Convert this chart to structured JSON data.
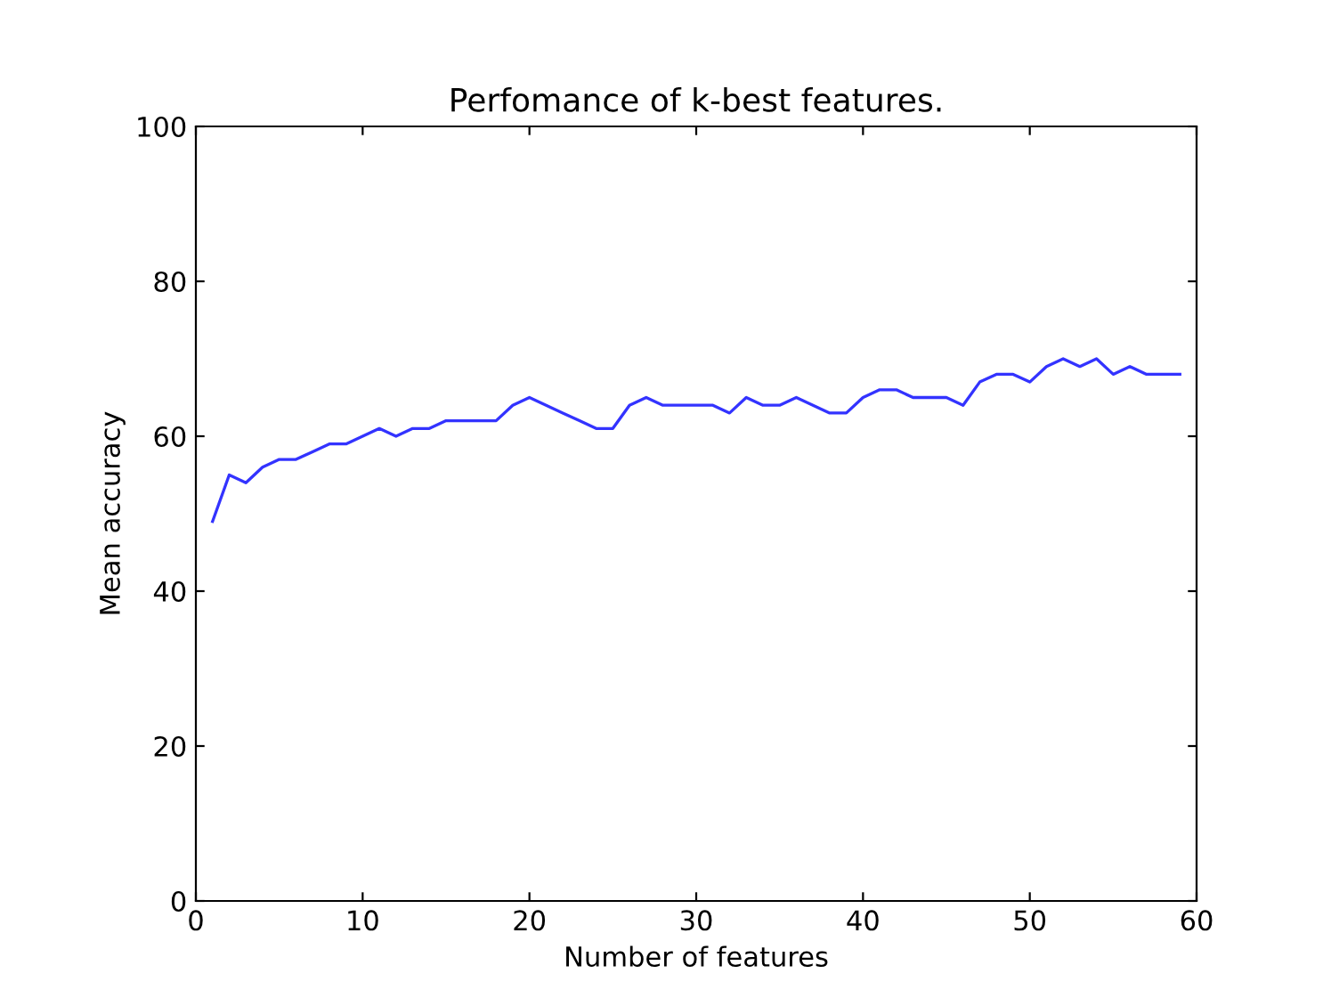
{
  "chart_data": {
    "type": "line",
    "title": "Perfomance of k-best features.",
    "xlabel": "Number of features",
    "ylabel": "Mean accuracy",
    "x": [
      1,
      2,
      3,
      4,
      5,
      6,
      7,
      8,
      9,
      10,
      11,
      12,
      13,
      14,
      15,
      16,
      17,
      18,
      19,
      20,
      21,
      22,
      23,
      24,
      25,
      26,
      27,
      28,
      29,
      30,
      31,
      32,
      33,
      34,
      35,
      36,
      37,
      38,
      39,
      40,
      41,
      42,
      43,
      44,
      45,
      46,
      47,
      48,
      49,
      50,
      51,
      52,
      53,
      54,
      55,
      56,
      57,
      58,
      59
    ],
    "series": [
      {
        "color": "#3333ff",
        "values": [
          49,
          55,
          54,
          56,
          57,
          57,
          58,
          59,
          59,
          60,
          61,
          60,
          61,
          61,
          62,
          62,
          62,
          62,
          64,
          65,
          64,
          63,
          62,
          61,
          61,
          64,
          65,
          64,
          64,
          64,
          64,
          63,
          65,
          64,
          64,
          65,
          64,
          63,
          63,
          65,
          66,
          66,
          65,
          65,
          65,
          64,
          67,
          68,
          68,
          67,
          69,
          70,
          69,
          70,
          68,
          69,
          68,
          68,
          68
        ]
      }
    ],
    "xlim": [
      0,
      60
    ],
    "ylim": [
      0,
      100
    ],
    "xticks": [
      0,
      10,
      20,
      30,
      40,
      50,
      60
    ],
    "yticks": [
      0,
      20,
      40,
      60,
      80,
      100
    ],
    "grid": false,
    "legend": false,
    "marker": "none",
    "line_style": "solid"
  }
}
